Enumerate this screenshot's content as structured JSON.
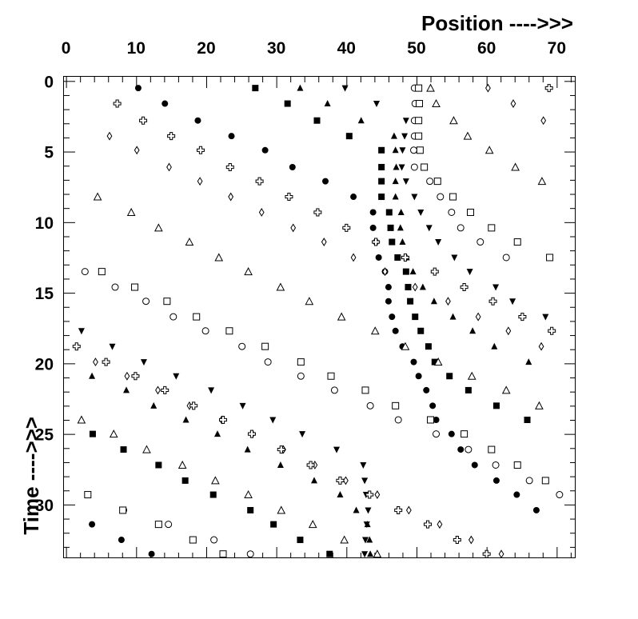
{
  "chart_data": {
    "type": "scatter",
    "title": "",
    "xlabel": "Position ---->>>",
    "ylabel": "Time ---->>>",
    "xlim": [
      -0.3,
      72.7
    ],
    "ylim": [
      -0.3,
      33.8
    ],
    "y_inverted": true,
    "x_axis_position": "top",
    "x_ticks": [
      0,
      10,
      20,
      30,
      40,
      50,
      60,
      70
    ],
    "y_ticks": [
      0,
      5,
      10,
      15,
      20,
      25,
      30
    ],
    "x_tick_labels": [
      "0",
      "10",
      "20",
      "30",
      "40",
      "50",
      "60",
      "70"
    ],
    "y_tick_labels": [
      "0",
      "5",
      "10",
      "15",
      "20",
      "25",
      "30"
    ],
    "grid": false,
    "legend": "none",
    "marker_color": "#000000",
    "series": [
      {
        "marker": "filled-circle",
        "points": [
          [
            10.3,
            0.5
          ],
          [
            14.1,
            1.6
          ],
          [
            18.8,
            2.8
          ],
          [
            23.6,
            3.9
          ],
          [
            28.4,
            4.9
          ],
          [
            32.3,
            6.1
          ],
          [
            37.0,
            7.1
          ],
          [
            41.0,
            8.2
          ],
          [
            43.8,
            9.3
          ],
          [
            43.8,
            10.4
          ],
          [
            44.2,
            11.4
          ],
          [
            44.6,
            12.5
          ],
          [
            45.5,
            13.5
          ],
          [
            46.0,
            14.6
          ],
          [
            46.0,
            15.6
          ],
          [
            46.5,
            16.7
          ],
          [
            47.0,
            17.7
          ],
          [
            48.0,
            18.8
          ],
          [
            49.6,
            19.9
          ],
          [
            50.3,
            20.9
          ],
          [
            51.4,
            21.9
          ],
          [
            52.3,
            23.0
          ],
          [
            52.8,
            24.0
          ],
          [
            55.0,
            25.0
          ],
          [
            56.3,
            26.1
          ],
          [
            58.3,
            27.2
          ],
          [
            61.4,
            28.3
          ],
          [
            64.3,
            29.3
          ],
          [
            67.1,
            30.4
          ],
          [
            3.7,
            31.4
          ],
          [
            7.9,
            32.5
          ],
          [
            12.2,
            33.5
          ]
        ]
      },
      {
        "marker": "filled-square",
        "points": [
          [
            27.0,
            0.5
          ],
          [
            31.6,
            1.6
          ],
          [
            35.8,
            2.8
          ],
          [
            40.4,
            3.9
          ],
          [
            45.0,
            4.9
          ],
          [
            45.0,
            6.1
          ],
          [
            45.0,
            7.1
          ],
          [
            45.0,
            8.2
          ],
          [
            46.1,
            9.3
          ],
          [
            46.3,
            10.4
          ],
          [
            46.5,
            11.4
          ],
          [
            47.3,
            12.5
          ],
          [
            48.5,
            13.5
          ],
          [
            48.8,
            14.6
          ],
          [
            49.1,
            15.6
          ],
          [
            49.8,
            16.7
          ],
          [
            50.6,
            17.7
          ],
          [
            51.7,
            18.8
          ],
          [
            52.6,
            19.9
          ],
          [
            54.7,
            20.9
          ],
          [
            57.4,
            21.9
          ],
          [
            61.4,
            23.0
          ],
          [
            65.8,
            24.0
          ],
          [
            3.8,
            25.0
          ],
          [
            8.2,
            26.1
          ],
          [
            13.2,
            27.2
          ],
          [
            17.0,
            28.3
          ],
          [
            21.0,
            29.3
          ],
          [
            26.3,
            30.4
          ],
          [
            29.6,
            31.4
          ],
          [
            33.4,
            32.5
          ],
          [
            37.6,
            33.5
          ]
        ]
      },
      {
        "marker": "filled-triangle",
        "points": [
          [
            33.4,
            0.5
          ],
          [
            37.3,
            1.6
          ],
          [
            42.1,
            2.8
          ],
          [
            46.8,
            3.9
          ],
          [
            47.0,
            4.9
          ],
          [
            47.1,
            6.1
          ],
          [
            47.0,
            7.1
          ],
          [
            47.0,
            8.2
          ],
          [
            47.8,
            9.3
          ],
          [
            47.7,
            10.4
          ],
          [
            48.0,
            11.4
          ],
          [
            48.6,
            12.5
          ],
          [
            49.5,
            13.5
          ],
          [
            50.9,
            14.6
          ],
          [
            52.5,
            15.6
          ],
          [
            55.2,
            16.7
          ],
          [
            58.0,
            17.7
          ],
          [
            61.1,
            18.8
          ],
          [
            66.0,
            19.9
          ],
          [
            3.7,
            20.9
          ],
          [
            8.6,
            21.9
          ],
          [
            12.5,
            23.0
          ],
          [
            17.1,
            24.0
          ],
          [
            21.6,
            25.0
          ],
          [
            25.9,
            26.1
          ],
          [
            30.6,
            27.2
          ],
          [
            35.4,
            28.3
          ],
          [
            39.1,
            29.3
          ],
          [
            41.4,
            30.4
          ],
          [
            43.0,
            31.4
          ],
          [
            43.3,
            32.5
          ],
          [
            43.4,
            33.5
          ]
        ]
      },
      {
        "marker": "filled-inverted-triangle",
        "points": [
          [
            39.8,
            0.5
          ],
          [
            44.3,
            1.6
          ],
          [
            48.5,
            2.8
          ],
          [
            48.3,
            3.9
          ],
          [
            48.0,
            4.9
          ],
          [
            47.9,
            6.1
          ],
          [
            48.5,
            7.1
          ],
          [
            49.7,
            8.2
          ],
          [
            50.6,
            9.3
          ],
          [
            51.8,
            10.4
          ],
          [
            53.1,
            11.4
          ],
          [
            55.4,
            12.5
          ],
          [
            57.6,
            13.5
          ],
          [
            61.3,
            14.6
          ],
          [
            63.7,
            15.6
          ],
          [
            68.4,
            16.7
          ],
          [
            2.2,
            17.7
          ],
          [
            6.6,
            18.8
          ],
          [
            11.1,
            19.9
          ],
          [
            15.7,
            20.9
          ],
          [
            20.7,
            21.9
          ],
          [
            25.2,
            23.0
          ],
          [
            29.5,
            24.0
          ],
          [
            33.7,
            25.0
          ],
          [
            38.6,
            26.1
          ],
          [
            42.4,
            27.2
          ],
          [
            42.6,
            28.3
          ],
          [
            42.8,
            29.3
          ],
          [
            43.1,
            30.4
          ],
          [
            42.9,
            31.4
          ],
          [
            42.7,
            32.5
          ],
          [
            42.6,
            33.5
          ]
        ]
      },
      {
        "marker": "open-circle",
        "points": [
          [
            49.7,
            0.5
          ],
          [
            49.8,
            1.6
          ],
          [
            49.7,
            2.8
          ],
          [
            49.7,
            3.9
          ],
          [
            49.6,
            4.9
          ],
          [
            49.7,
            6.1
          ],
          [
            51.9,
            7.1
          ],
          [
            53.4,
            8.2
          ],
          [
            55.0,
            9.3
          ],
          [
            56.3,
            10.4
          ],
          [
            59.1,
            11.4
          ],
          [
            62.8,
            12.5
          ],
          [
            2.7,
            13.5
          ],
          [
            7.0,
            14.6
          ],
          [
            11.4,
            15.6
          ],
          [
            15.3,
            16.7
          ],
          [
            19.9,
            17.7
          ],
          [
            25.1,
            18.8
          ],
          [
            28.8,
            19.9
          ],
          [
            33.5,
            20.9
          ],
          [
            38.3,
            21.9
          ],
          [
            43.4,
            23.0
          ],
          [
            47.4,
            24.0
          ],
          [
            52.8,
            25.0
          ],
          [
            57.4,
            26.1
          ],
          [
            61.3,
            27.2
          ],
          [
            66.1,
            28.3
          ],
          [
            70.4,
            29.3
          ],
          [
            8.2,
            30.4
          ],
          [
            14.6,
            31.4
          ],
          [
            21.1,
            32.5
          ],
          [
            26.3,
            33.5
          ]
        ]
      },
      {
        "marker": "open-square",
        "points": [
          [
            50.3,
            0.5
          ],
          [
            50.4,
            1.6
          ],
          [
            50.3,
            2.8
          ],
          [
            50.3,
            3.9
          ],
          [
            50.5,
            4.9
          ],
          [
            51.1,
            6.1
          ],
          [
            53.0,
            7.1
          ],
          [
            55.2,
            8.2
          ],
          [
            57.7,
            9.3
          ],
          [
            60.7,
            10.4
          ],
          [
            64.4,
            11.4
          ],
          [
            69.0,
            12.5
          ],
          [
            5.1,
            13.5
          ],
          [
            9.8,
            14.6
          ],
          [
            14.4,
            15.6
          ],
          [
            18.6,
            16.7
          ],
          [
            23.3,
            17.7
          ],
          [
            28.4,
            18.8
          ],
          [
            33.5,
            19.9
          ],
          [
            37.8,
            20.9
          ],
          [
            42.7,
            21.9
          ],
          [
            47.0,
            23.0
          ],
          [
            52.0,
            24.0
          ],
          [
            56.8,
            25.0
          ],
          [
            60.7,
            26.1
          ],
          [
            64.4,
            27.2
          ],
          [
            68.4,
            28.3
          ],
          [
            3.1,
            29.3
          ],
          [
            8.1,
            30.4
          ],
          [
            13.2,
            31.4
          ],
          [
            18.1,
            32.5
          ],
          [
            22.4,
            33.5
          ]
        ]
      },
      {
        "marker": "open-triangle",
        "points": [
          [
            52.0,
            0.5
          ],
          [
            52.8,
            1.6
          ],
          [
            55.3,
            2.8
          ],
          [
            57.3,
            3.9
          ],
          [
            60.4,
            4.9
          ],
          [
            64.1,
            6.1
          ],
          [
            67.9,
            7.1
          ],
          [
            4.5,
            8.2
          ],
          [
            9.3,
            9.3
          ],
          [
            13.2,
            10.4
          ],
          [
            17.6,
            11.4
          ],
          [
            21.8,
            12.5
          ],
          [
            26.0,
            13.5
          ],
          [
            30.6,
            14.6
          ],
          [
            34.7,
            15.6
          ],
          [
            39.3,
            16.7
          ],
          [
            44.1,
            17.7
          ],
          [
            48.4,
            18.8
          ],
          [
            53.1,
            19.9
          ],
          [
            57.9,
            20.9
          ],
          [
            62.8,
            21.9
          ],
          [
            67.5,
            23.0
          ],
          [
            2.2,
            24.0
          ],
          [
            6.8,
            25.0
          ],
          [
            11.5,
            26.1
          ],
          [
            16.6,
            27.2
          ],
          [
            21.3,
            28.3
          ],
          [
            26.0,
            29.3
          ],
          [
            30.7,
            30.4
          ],
          [
            35.2,
            31.4
          ],
          [
            39.7,
            32.5
          ],
          [
            44.4,
            33.5
          ]
        ]
      },
      {
        "marker": "open-diamond",
        "points": [
          [
            60.2,
            0.5
          ],
          [
            63.8,
            1.6
          ],
          [
            68.1,
            2.8
          ],
          [
            6.2,
            3.9
          ],
          [
            10.1,
            4.9
          ],
          [
            14.7,
            6.1
          ],
          [
            19.1,
            7.1
          ],
          [
            23.5,
            8.2
          ],
          [
            27.9,
            9.3
          ],
          [
            32.4,
            10.4
          ],
          [
            36.8,
            11.4
          ],
          [
            41.0,
            12.5
          ],
          [
            45.5,
            13.5
          ],
          [
            49.8,
            14.6
          ],
          [
            54.5,
            15.6
          ],
          [
            58.8,
            16.7
          ],
          [
            63.1,
            17.7
          ],
          [
            67.8,
            18.8
          ],
          [
            4.2,
            19.9
          ],
          [
            8.7,
            20.9
          ],
          [
            13.1,
            21.9
          ],
          [
            17.6,
            23.0
          ],
          [
            22.2,
            24.0
          ],
          [
            26.6,
            25.0
          ],
          [
            31.0,
            26.1
          ],
          [
            35.5,
            27.2
          ],
          [
            39.9,
            28.3
          ],
          [
            44.4,
            29.3
          ],
          [
            48.9,
            30.4
          ],
          [
            53.3,
            31.4
          ],
          [
            57.8,
            32.5
          ],
          [
            62.1,
            33.5
          ]
        ]
      },
      {
        "marker": "open-cross",
        "points": [
          [
            68.9,
            0.5
          ],
          [
            7.3,
            1.6
          ],
          [
            11.0,
            2.8
          ],
          [
            15.0,
            3.9
          ],
          [
            19.2,
            4.9
          ],
          [
            23.4,
            6.1
          ],
          [
            27.6,
            7.1
          ],
          [
            31.8,
            8.2
          ],
          [
            35.9,
            9.3
          ],
          [
            40.0,
            10.4
          ],
          [
            44.2,
            11.4
          ],
          [
            48.4,
            12.5
          ],
          [
            52.6,
            13.5
          ],
          [
            56.8,
            14.6
          ],
          [
            60.9,
            15.6
          ],
          [
            65.1,
            16.7
          ],
          [
            69.3,
            17.7
          ],
          [
            1.5,
            18.8
          ],
          [
            5.7,
            19.9
          ],
          [
            9.9,
            20.9
          ],
          [
            14.1,
            21.9
          ],
          [
            18.2,
            23.0
          ],
          [
            22.4,
            24.0
          ],
          [
            26.5,
            25.0
          ],
          [
            30.7,
            26.1
          ],
          [
            34.9,
            27.2
          ],
          [
            39.1,
            28.3
          ],
          [
            43.3,
            29.3
          ],
          [
            47.4,
            30.4
          ],
          [
            51.6,
            31.4
          ],
          [
            55.8,
            32.5
          ],
          [
            60.0,
            33.5
          ]
        ]
      }
    ]
  }
}
